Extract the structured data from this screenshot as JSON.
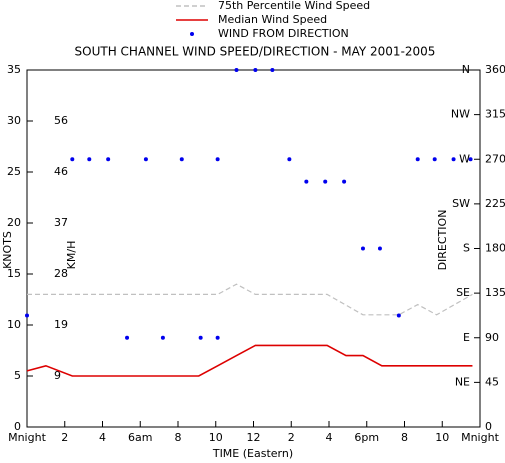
{
  "chart_data": {
    "type": "line",
    "title": "SOUTH CHANNEL WIND SPEED/DIRECTION - MAY 2001-2005",
    "xlabel": "TIME (Eastern)",
    "ylabel": "KNOTS",
    "ylabel_inner": "KM/H",
    "y2label": "DIRECTION",
    "xlim": [
      0,
      24
    ],
    "xticks": [
      {
        "value": 0,
        "label": "Mnight"
      },
      2,
      4,
      {
        "value": 6,
        "label": "6am"
      },
      8,
      10,
      12,
      {
        "value": 14,
        "label": "2"
      },
      {
        "value": 16,
        "label": "4"
      },
      {
        "value": 18,
        "label": "6pm"
      },
      {
        "value": 20,
        "label": "8"
      },
      {
        "value": 22,
        "label": "10"
      },
      {
        "value": 24,
        "label": "Mnight"
      }
    ],
    "ylim": [
      0,
      35
    ],
    "yticks": [
      0,
      5,
      10,
      15,
      20,
      25,
      30,
      35
    ],
    "kmh_ticks": [
      {
        "value": 5,
        "label": "9"
      },
      {
        "value": 10,
        "label": "19"
      },
      {
        "value": 15,
        "label": "28"
      },
      {
        "value": 20,
        "label": "37"
      },
      {
        "value": 25,
        "label": "46"
      },
      {
        "value": 30,
        "label": "56"
      }
    ],
    "y2lim": [
      0,
      360
    ],
    "y2ticks": [
      0,
      45,
      90,
      135,
      180,
      225,
      270,
      315,
      360
    ],
    "compass_ticks": [
      {
        "value": 45,
        "label": "NE"
      },
      {
        "value": 90,
        "label": "E"
      },
      {
        "value": 135,
        "label": "SE"
      },
      {
        "value": 180,
        "label": "S"
      },
      {
        "value": 225,
        "label": "SW"
      },
      {
        "value": 270,
        "label": "W"
      },
      {
        "value": 315,
        "label": "NW"
      },
      {
        "value": 360,
        "label": "N"
      }
    ],
    "series": [
      {
        "name": "75th Percentile Wind Speed",
        "kind": "line",
        "dashed": true,
        "color": "#c0c0c0",
        "x": [
          0,
          10.1,
          11.1,
          12.1,
          15.9,
          17.8,
          19.7,
          20.7,
          21.7,
          23.6
        ],
        "values": [
          13,
          13,
          14,
          13,
          13,
          11,
          11,
          12,
          11,
          13
        ]
      },
      {
        "name": "Median Wind Speed",
        "kind": "line",
        "dashed": false,
        "color": "#dd0000",
        "x": [
          0,
          1,
          2.4,
          9.1,
          10.1,
          11.1,
          12.1,
          15.9,
          16.9,
          17.8,
          18.8,
          23.6
        ],
        "values": [
          5.5,
          6,
          5,
          5,
          6,
          7,
          8,
          8,
          7,
          7,
          6,
          6
        ]
      },
      {
        "name": "WIND FROM DIRECTION",
        "kind": "scatter",
        "axis": "y2",
        "color": "#0000ee",
        "x": [
          0,
          2.4,
          3.3,
          4.3,
          5.3,
          6.3,
          7.2,
          8.2,
          9.2,
          10.1,
          10.1,
          11.1,
          12.1,
          13,
          13.9,
          14.8,
          15.8,
          16.8,
          17.8,
          18.7,
          19.7,
          20.7,
          21.6,
          22.6,
          23.5
        ],
        "values": [
          112.5,
          270,
          270,
          270,
          90,
          270,
          90,
          270,
          90,
          270,
          90,
          360,
          360,
          360,
          270,
          247.5,
          247.5,
          247.5,
          180,
          180,
          112.5,
          270,
          270,
          270,
          270
        ]
      }
    ]
  }
}
